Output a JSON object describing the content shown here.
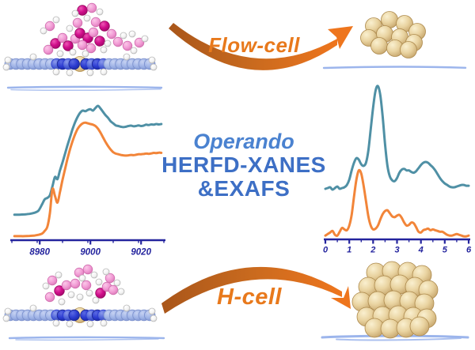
{
  "labels": {
    "flow_cell": "Flow-cell",
    "h_cell": "H-cell",
    "operando": "Operando",
    "technique_line1": "HERFD-XANES",
    "technique_line2": "&EXAFS"
  },
  "colors": {
    "curve_blue": "#4f90a5",
    "curve_orange": "#f28539",
    "axis_navy": "#24249e",
    "title_blue": "#3d6fc5",
    "operando_blue": "#4a82d0",
    "label_orange": "#e8791c",
    "arrow_dark": "#a9561a",
    "arrow_bright": "#ee751d",
    "support_blue": "#9cb5ec",
    "gold_atom": "#dfc08b",
    "magenta_atom": "#cf0d8a",
    "pink_atom": "#f19ad4",
    "carbon_blue_atom": "#9fb3e6",
    "nitrogen_blue_atom": "#2b3bd0"
  },
  "chart_data": [
    {
      "id": "xanes",
      "type": "line",
      "title": "",
      "xlabel": "",
      "ylabel": "",
      "xlim": [
        8969,
        9029
      ],
      "ylim": [
        0,
        105
      ],
      "xticks": [
        8980,
        9000,
        9020
      ],
      "xminor_step": 10,
      "grid": false,
      "legend": "none",
      "x": [
        8970,
        8972,
        8974,
        8976,
        8978,
        8979.5,
        8981,
        8982,
        8983,
        8984,
        8985,
        8986,
        8987,
        8988,
        8989,
        8990,
        8991,
        8992,
        8993,
        8994,
        8995,
        8996,
        8997,
        8998,
        8999,
        9000,
        9001,
        9002,
        9003,
        9004,
        9005,
        9006,
        9007,
        9008,
        9009,
        9010,
        9011,
        9012,
        9013,
        9014,
        9015,
        9016,
        9017,
        9018,
        9019,
        9020,
        9021,
        9022,
        9023,
        9024,
        9025,
        9026,
        9027,
        9028
      ],
      "series": [
        {
          "name": "blue",
          "color": "#4f90a5",
          "values": [
            19,
            19,
            19.2,
            19.6,
            20.5,
            22,
            27,
            30.5,
            31.5,
            33.5,
            40,
            47,
            45.5,
            52,
            58,
            64.5,
            71,
            77,
            83,
            88,
            92,
            95,
            96.5,
            96,
            97,
            97.5,
            96.5,
            98.5,
            100,
            98,
            95.5,
            93,
            91,
            88.5,
            87,
            85.5,
            85,
            84.5,
            84.2,
            84.5,
            85,
            85.3,
            84.8,
            85,
            85.5,
            85,
            85.3,
            86,
            85.7,
            86.2,
            86,
            86.5,
            86.2,
            86.5
          ]
        },
        {
          "name": "orange",
          "color": "#f28539",
          "values": [
            3,
            3,
            3,
            3.2,
            3.5,
            4,
            5,
            7,
            10,
            20,
            38,
            33,
            28,
            36,
            45,
            53,
            61,
            68,
            74,
            79,
            83,
            85.5,
            87,
            87.5,
            87,
            86.5,
            86,
            85,
            83,
            80,
            76.5,
            73,
            70,
            67.5,
            65.5,
            64.5,
            64,
            63.5,
            63.2,
            63,
            63.2,
            63.5,
            63.3,
            63.6,
            64,
            64,
            64.2,
            64.5,
            64.3,
            64.6,
            65,
            64.8,
            65.2,
            65
          ]
        }
      ]
    },
    {
      "id": "exafs",
      "type": "line",
      "title": "",
      "xlabel": "",
      "ylabel": "",
      "xlim": [
        0,
        6
      ],
      "ylim": [
        0,
        105
      ],
      "xticks": [
        0,
        1,
        2,
        3,
        4,
        5,
        6
      ],
      "xminor_step": 0.5,
      "grid": false,
      "legend": "none",
      "x": [
        0,
        0.1,
        0.2,
        0.3,
        0.4,
        0.5,
        0.6,
        0.7,
        0.8,
        0.9,
        1,
        1.1,
        1.2,
        1.3,
        1.4,
        1.5,
        1.6,
        1.7,
        1.8,
        1.9,
        2,
        2.1,
        2.2,
        2.3,
        2.4,
        2.5,
        2.6,
        2.7,
        2.8,
        2.9,
        3,
        3.1,
        3.2,
        3.3,
        3.4,
        3.5,
        3.6,
        3.7,
        3.8,
        3.9,
        4,
        4.1,
        4.2,
        4.3,
        4.4,
        4.5,
        4.6,
        4.7,
        4.8,
        4.9,
        5,
        5.1,
        5.2,
        5.3,
        5.4,
        5.5,
        5.6,
        5.7,
        5.8,
        5.9,
        6
      ],
      "series": [
        {
          "name": "blue",
          "color": "#4f90a5",
          "values": [
            33,
            33.5,
            34,
            32.5,
            33.5,
            34.5,
            33,
            33.5,
            34,
            35.5,
            39,
            45,
            50,
            53,
            52,
            49,
            48,
            50,
            58,
            72,
            86,
            97,
            100,
            94,
            80,
            62,
            48,
            41,
            38.5,
            38,
            40,
            43.5,
            45.5,
            46,
            45,
            45,
            44,
            43.5,
            44.5,
            46.5,
            48.5,
            50,
            50.5,
            50,
            48.5,
            47,
            45,
            42.5,
            40,
            38,
            36.5,
            35.5,
            34.5,
            34,
            34,
            34.5,
            35,
            35.5,
            35.5,
            35,
            35
          ]
        },
        {
          "name": "orange",
          "color": "#f28539",
          "values": [
            2.5,
            3.5,
            4.5,
            5.5,
            3,
            2.5,
            5,
            7.5,
            6.5,
            6,
            9,
            16,
            28,
            39,
            45,
            43,
            35,
            25,
            15,
            9,
            6.5,
            7,
            9,
            13,
            16.5,
            18.5,
            19,
            17,
            15,
            14.5,
            15.5,
            16,
            14,
            11,
            9,
            9.5,
            11,
            10.5,
            8,
            5,
            4.5,
            6,
            6.5,
            7,
            6,
            6.5,
            6,
            5.5,
            5,
            5,
            4,
            3,
            2.5,
            2.5,
            3,
            3.5,
            3,
            2.5,
            2,
            2,
            2.5
          ]
        }
      ]
    }
  ]
}
